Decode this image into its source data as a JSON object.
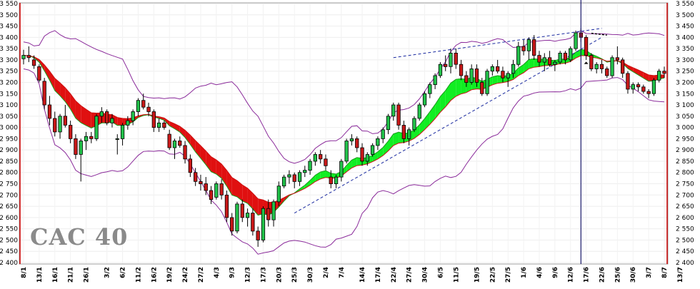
{
  "chart_data": {
    "type": "candlestick",
    "title": "",
    "logo_text": "CAC 40",
    "ylim": [
      2400,
      3550
    ],
    "y_ticks_left": [
      "2 400",
      "2 450",
      "2 500",
      "2 550",
      "2 600",
      "2 650",
      "2 700",
      "2 750",
      "2 800",
      "2 850",
      "2 900",
      "2 950",
      "3 000",
      "3 050",
      "3 100",
      "3 150",
      "3 200",
      "3 250",
      "3 300",
      "3 350",
      "3 400",
      "3 450",
      "3 500",
      "3 550"
    ],
    "y_ticks_right": [
      "2 400",
      "2 450",
      "2 500",
      "2 550",
      "2 600",
      "2 650",
      "2 700",
      "2 750",
      "2 800",
      "2 850",
      "2 900",
      "2 950",
      "3 000",
      "3 050",
      "3 100",
      "3 150",
      "3 200",
      "3 250",
      "3 300",
      "3 350",
      "3 400",
      "3 450",
      "3 500",
      "3 550"
    ],
    "x_tick_labels": [
      "8/1",
      "13/1",
      "16/1",
      "21/1",
      "26/1",
      "3/2",
      "6/2",
      "11/2",
      "16/2",
      "19/2",
      "24/2",
      "27/2",
      "4/3",
      "9/3",
      "12/3",
      "17/3",
      "20/3",
      "25/3",
      "30/3",
      "2/4",
      "7/4",
      "14/4",
      "17/4",
      "22/4",
      "27/4",
      "30/4",
      "6/5",
      "11/5",
      "19/5",
      "22/5",
      "27/5",
      "1/6",
      "4/6",
      "9/6",
      "12/6",
      "17/6",
      "22/6",
      "25/6",
      "30/6",
      "3/7",
      "8/7",
      "13/7"
    ],
    "x_tick_bars": [
      0,
      3,
      6,
      9,
      12,
      16,
      19,
      22,
      25,
      28,
      31,
      34,
      37,
      40,
      43,
      46,
      49,
      52,
      55,
      58,
      61,
      65,
      68,
      71,
      74,
      77,
      80,
      83,
      87,
      90,
      93,
      96,
      99,
      102,
      105,
      108,
      111,
      114,
      117,
      120,
      123,
      126
    ],
    "candles": [
      [
        3305,
        3345,
        3280,
        3320
      ],
      [
        3320,
        3360,
        3290,
        3310
      ],
      [
        3300,
        3320,
        3260,
        3275
      ],
      [
        3270,
        3280,
        3200,
        3210
      ],
      [
        3205,
        3220,
        3080,
        3100
      ],
      [
        3100,
        3140,
        3010,
        3040
      ],
      [
        3040,
        3070,
        2960,
        2980
      ],
      [
        2980,
        3060,
        2950,
        3050
      ],
      [
        3050,
        3100,
        3000,
        3010
      ],
      [
        3010,
        3030,
        2930,
        2950
      ],
      [
        2950,
        2970,
        2860,
        2880
      ],
      [
        2880,
        2950,
        2760,
        2940
      ],
      [
        2940,
        2980,
        2900,
        2960
      ],
      [
        2960,
        2980,
        2930,
        2950
      ],
      [
        2950,
        3060,
        2940,
        3050
      ],
      [
        3050,
        3090,
        3020,
        3070
      ],
      [
        3070,
        3080,
        3010,
        3020
      ],
      [
        3020,
        3060,
        3000,
        3040
      ],
      [
        2950,
        2970,
        2880,
        2950
      ],
      [
        2950,
        3020,
        2920,
        3010
      ],
      [
        3010,
        3050,
        2990,
        3030
      ],
      [
        3030,
        3080,
        3010,
        3070
      ],
      [
        3070,
        3130,
        3050,
        3120
      ],
      [
        3120,
        3150,
        3080,
        3090
      ],
      [
        3090,
        3110,
        3050,
        3070
      ],
      [
        3070,
        3080,
        2980,
        3000
      ],
      [
        3000,
        3040,
        2980,
        3020
      ],
      [
        3020,
        3030,
        2990,
        3000
      ],
      [
        2970,
        2990,
        2900,
        2910
      ],
      [
        2910,
        2950,
        2860,
        2940
      ],
      [
        2940,
        2960,
        2910,
        2920
      ],
      [
        2920,
        2940,
        2840,
        2860
      ],
      [
        2860,
        2880,
        2780,
        2800
      ],
      [
        2800,
        2820,
        2740,
        2760
      ],
      [
        2760,
        2790,
        2720,
        2750
      ],
      [
        2750,
        2780,
        2700,
        2720
      ],
      [
        2720,
        2740,
        2660,
        2680
      ],
      [
        2690,
        2760,
        2680,
        2750
      ],
      [
        2750,
        2770,
        2680,
        2700
      ],
      [
        2700,
        2720,
        2580,
        2600
      ],
      [
        2600,
        2620,
        2520,
        2540
      ],
      [
        2540,
        2670,
        2530,
        2660
      ],
      [
        2660,
        2680,
        2580,
        2600
      ],
      [
        2600,
        2640,
        2560,
        2620
      ],
      [
        2620,
        2640,
        2520,
        2540
      ],
      [
        2540,
        2560,
        2470,
        2500
      ],
      [
        2500,
        2650,
        2490,
        2640
      ],
      [
        2640,
        2680,
        2560,
        2590
      ],
      [
        2590,
        2680,
        2560,
        2670
      ],
      [
        2670,
        2760,
        2650,
        2740
      ],
      [
        2740,
        2790,
        2730,
        2780
      ],
      [
        2780,
        2810,
        2750,
        2790
      ],
      [
        2790,
        2800,
        2730,
        2760
      ],
      [
        2760,
        2810,
        2740,
        2800
      ],
      [
        2800,
        2830,
        2780,
        2810
      ],
      [
        2810,
        2860,
        2790,
        2850
      ],
      [
        2850,
        2890,
        2830,
        2880
      ],
      [
        2880,
        2900,
        2840,
        2860
      ],
      [
        2860,
        2880,
        2810,
        2830
      ],
      [
        2780,
        2810,
        2730,
        2750
      ],
      [
        2750,
        2790,
        2730,
        2780
      ],
      [
        2780,
        2860,
        2760,
        2850
      ],
      [
        2850,
        2950,
        2840,
        2940
      ],
      [
        2940,
        2970,
        2920,
        2950
      ],
      [
        2950,
        2960,
        2890,
        2910
      ],
      [
        2910,
        2930,
        2830,
        2850
      ],
      [
        2850,
        2890,
        2830,
        2880
      ],
      [
        2880,
        2930,
        2870,
        2920
      ],
      [
        2920,
        2960,
        2900,
        2950
      ],
      [
        2950,
        3000,
        2930,
        2990
      ],
      [
        2990,
        3060,
        2970,
        3050
      ],
      [
        3050,
        3110,
        3030,
        3100
      ],
      [
        3100,
        3110,
        2990,
        3010
      ],
      [
        3010,
        3030,
        2930,
        2950
      ],
      [
        2950,
        3000,
        2920,
        2990
      ],
      [
        2990,
        3050,
        2980,
        3040
      ],
      [
        3040,
        3110,
        3030,
        3100
      ],
      [
        3100,
        3160,
        3090,
        3150
      ],
      [
        3150,
        3200,
        3130,
        3190
      ],
      [
        3190,
        3240,
        3170,
        3230
      ],
      [
        3230,
        3290,
        3220,
        3280
      ],
      [
        3280,
        3320,
        3250,
        3270
      ],
      [
        3270,
        3350,
        3240,
        3330
      ],
      [
        3330,
        3350,
        3260,
        3280
      ],
      [
        3280,
        3300,
        3210,
        3230
      ],
      [
        3230,
        3250,
        3180,
        3200
      ],
      [
        3200,
        3280,
        3190,
        3260
      ],
      [
        3260,
        3280,
        3180,
        3200
      ],
      [
        3200,
        3220,
        3140,
        3150
      ],
      [
        3150,
        3260,
        3140,
        3250
      ],
      [
        3250,
        3280,
        3230,
        3270
      ],
      [
        3270,
        3300,
        3240,
        3250
      ],
      [
        3250,
        3270,
        3200,
        3220
      ],
      [
        3220,
        3250,
        3180,
        3240
      ],
      [
        3240,
        3300,
        3220,
        3280
      ],
      [
        3280,
        3380,
        3270,
        3360
      ],
      [
        3360,
        3390,
        3320,
        3340
      ],
      [
        3340,
        3400,
        3300,
        3390
      ],
      [
        3390,
        3410,
        3300,
        3320
      ],
      [
        3320,
        3340,
        3270,
        3290
      ],
      [
        3290,
        3330,
        3250,
        3310
      ],
      [
        3310,
        3340,
        3270,
        3280
      ],
      [
        3280,
        3300,
        3250,
        3290
      ],
      [
        3290,
        3340,
        3280,
        3330
      ],
      [
        3330,
        3340,
        3280,
        3300
      ],
      [
        3300,
        3360,
        3290,
        3350
      ],
      [
        3350,
        3430,
        3340,
        3420
      ],
      [
        3420,
        3440,
        3380,
        3400
      ],
      [
        3400,
        3410,
        3300,
        3320
      ],
      [
        3320,
        3330,
        3250,
        3260
      ],
      [
        3260,
        3290,
        3240,
        3280
      ],
      [
        3280,
        3300,
        3240,
        3260
      ],
      [
        3260,
        3270,
        3220,
        3230
      ],
      [
        3230,
        3320,
        3220,
        3310
      ],
      [
        3310,
        3360,
        3280,
        3300
      ],
      [
        3300,
        3310,
        3220,
        3240
      ],
      [
        3240,
        3250,
        3150,
        3170
      ],
      [
        3170,
        3200,
        3150,
        3190
      ],
      [
        3190,
        3200,
        3160,
        3180
      ],
      [
        3180,
        3190,
        3150,
        3160
      ],
      [
        3160,
        3170,
        3130,
        3150
      ],
      [
        3150,
        3220,
        3140,
        3210
      ],
      [
        3210,
        3260,
        3200,
        3250
      ],
      [
        3250,
        3270,
        3220,
        3240
      ]
    ],
    "overlays": [
      "moving-average-short (green)",
      "moving-average-long (red)",
      "bollinger-bands (purple)",
      "trend-lines (blue dashed)",
      "vertical-marker (navy)"
    ]
  }
}
